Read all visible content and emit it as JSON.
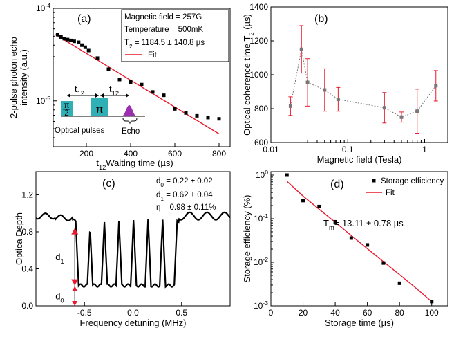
{
  "chart_data": [
    {
      "panel": "(a)",
      "type": "scatter",
      "xlabel": "t12Waiting time (µs)",
      "xlabel_sub": "12",
      "xlabel_prefix": "t",
      "xlabel_rest": "Waiting time (µs)",
      "ylabel_line1": "2-pulse photon echo",
      "ylabel_line2": "intensity (a.u.)",
      "xlim": [
        50,
        850
      ],
      "ylim": [
        3.2e-06,
        0.0001
      ],
      "yscale": "log",
      "xticks": [
        200,
        400,
        600,
        800
      ],
      "yticks": [
        {
          "value": 1e-05,
          "base": "10",
          "exp": "-5"
        },
        {
          "value": 0.0001,
          "base": "10",
          "exp": "-4"
        }
      ],
      "series": [
        {
          "name": "",
          "kind": "points",
          "x": [
            70,
            85,
            100,
            115,
            130,
            145,
            165,
            180,
            195,
            210,
            250,
            300,
            350,
            400,
            450,
            500,
            550,
            600,
            650,
            700,
            750,
            800
          ],
          "y": [
            5.2e-05,
            4.9e-05,
            4.7e-05,
            4.6e-05,
            4.5e-05,
            4.4e-05,
            4.3e-05,
            4e-05,
            3.8e-05,
            3.5e-05,
            2.9e-05,
            2.2e-05,
            1.7e-05,
            1.6e-05,
            1.5e-05,
            1.25e-05,
            1.15e-05,
            8.2e-06,
            7.4e-06,
            6.9e-06,
            6.6e-06,
            6.4e-06
          ]
        },
        {
          "name": "Fit",
          "kind": "line",
          "color": "#e8192c",
          "x": [
            60,
            800
          ],
          "y": [
            5.2e-05,
            4.4e-06
          ]
        }
      ],
      "legend_lines": [
        "Magnetic field = 257G",
        "Temperature = 500mK"
      ],
      "legend_t2": {
        "prefix": "T",
        "sub": "2",
        "rest": " = 1184.5 ± 140.8 µs"
      },
      "legend_fit": "Fit",
      "inset": {
        "t12_prefix": "t",
        "t12_sub": "12",
        "half_pi_num": "π",
        "half_pi_den": "2",
        "pi": "π",
        "pulses_label": "Optical pulses",
        "echo_label": "Echo",
        "pulse_color": "#2fb0b5",
        "echo_color": "#9b2fb0"
      }
    },
    {
      "panel": "(b)",
      "type": "line",
      "xlabel": "Magnetic field (Tesla)",
      "ylabel_prefix": "Optical coherence time T",
      "ylabel_sub": "2",
      "ylabel_rest": " (µs)",
      "xscale": "log",
      "xlim": [
        0.01,
        2.0
      ],
      "ylim": [
        600,
        1400
      ],
      "xticks": [
        {
          "value": 0.01,
          "label": "0.01"
        },
        {
          "value": 0.1,
          "label": "0.1"
        },
        {
          "value": 1,
          "label": "1"
        }
      ],
      "yticks": [
        600,
        800,
        1000,
        1200,
        1400
      ],
      "series": [
        {
          "name": "",
          "color": "#777777",
          "error_color": "#e8192c",
          "x": [
            0.018,
            0.025,
            0.03,
            0.05,
            0.075,
            0.3,
            0.5,
            0.8,
            1.4
          ],
          "y": [
            815,
            1150,
            955,
            910,
            855,
            805,
            750,
            785,
            935
          ],
          "err": [
            55,
            140,
            140,
            125,
            70,
            90,
            30,
            130,
            90
          ]
        }
      ]
    },
    {
      "panel": "(c)",
      "type": "line",
      "xlabel": "Frequency detuning (MHz)",
      "ylabel": "Optica Depth",
      "xlim": [
        -1.0,
        1.0
      ],
      "ylim": [
        0.0,
        1.45
      ],
      "xticks": [
        {
          "value": -0.5,
          "label": "-0.5"
        },
        {
          "value": 0.0,
          "label": "0.0"
        },
        {
          "value": 0.5,
          "label": "0.5"
        }
      ],
      "yticks": [
        {
          "value": 0.0,
          "label": "0.0"
        },
        {
          "value": 0.4,
          "label": "0.4"
        },
        {
          "value": 0.8,
          "label": "0.8"
        },
        {
          "value": 1.2,
          "label": "1.2"
        }
      ],
      "comb_teeth_centers": [
        -0.515,
        -0.37,
        -0.22,
        -0.07,
        0.08,
        0.23,
        0.38
      ],
      "comb_depth_top": 0.92,
      "comb_depth_bottom": 0.22,
      "annotations": [
        {
          "prefix": "d",
          "sub": "0",
          "rest": " = 0.22 ± 0.02"
        },
        {
          "prefix": "d",
          "sub": "1",
          "rest": " =  0.62 ± 0.04"
        },
        {
          "prefix": "η = 0.98 ± 0.11%",
          "sub": "",
          "rest": ""
        }
      ],
      "marker_d1": {
        "prefix": "d",
        "sub": "1"
      },
      "marker_d0": {
        "prefix": "d",
        "sub": "0"
      },
      "arrow_color": "#e8192c",
      "arrow_x": -0.6,
      "levels": [
        0.0,
        0.22,
        0.84
      ]
    },
    {
      "panel": "(d)",
      "type": "scatter",
      "xlabel": "Storage time (µs)",
      "ylabel": "Storage efficiency (%)",
      "yscale": "log",
      "xlim": [
        0,
        110
      ],
      "ylim": [
        0.001,
        1.2
      ],
      "xticks": [
        0,
        20,
        40,
        60,
        80,
        100
      ],
      "yticks": [
        {
          "value": 0.001,
          "base": "10",
          "exp": "-3"
        },
        {
          "value": 0.01,
          "base": "10",
          "exp": "-2"
        },
        {
          "value": 0.1,
          "base": "10",
          "exp": "-1"
        },
        {
          "value": 1,
          "base": "10",
          "exp": "0"
        }
      ],
      "series": [
        {
          "name": "Storage efficiency",
          "kind": "points",
          "x": [
            10,
            20,
            30,
            40,
            50,
            60,
            70,
            80,
            100
          ],
          "y": [
            1.0,
            0.26,
            0.19,
            0.085,
            0.036,
            0.025,
            0.0096,
            0.0033,
            0.00125
          ]
        },
        {
          "name": "Fit",
          "kind": "line",
          "color": "#e8192c",
          "x": [
            10,
            20,
            30,
            40,
            50,
            60,
            70,
            80,
            90,
            100
          ],
          "y": [
            0.72,
            0.33,
            0.165,
            0.083,
            0.041,
            0.0205,
            0.0103,
            0.0052,
            0.0026,
            0.00125
          ]
        }
      ],
      "annotation": {
        "prefix": "T",
        "sub": "m",
        "rest": "= 13.11 ± 0.78 µs"
      }
    }
  ]
}
